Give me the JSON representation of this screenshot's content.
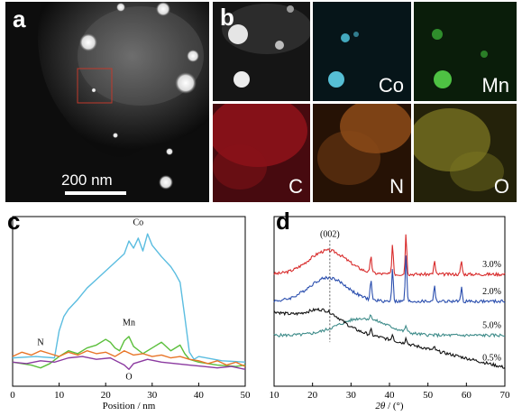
{
  "figure": {
    "panel_a": {
      "letter": "a",
      "scale_bar_label": "200 nm"
    },
    "panel_b": {
      "letter": "b",
      "maps": [
        {
          "key": "haadf",
          "label": "",
          "color": "#ffffff"
        },
        {
          "key": "co",
          "label": "Co",
          "color": "#4fc3dc"
        },
        {
          "key": "mn",
          "label": "Mn",
          "color": "#3fbf3a"
        },
        {
          "key": "c",
          "label": "C",
          "color": "#c3121e"
        },
        {
          "key": "n",
          "label": "N",
          "color": "#d9782a"
        },
        {
          "key": "o",
          "label": "O",
          "color": "#c9c23a"
        }
      ]
    }
  },
  "chart_data": [
    {
      "panel": "c",
      "type": "line",
      "xlabel": "Position / nm",
      "ylabel": "",
      "xlim": [
        0,
        50
      ],
      "xticks": [
        "0",
        "10",
        "20",
        "30",
        "40",
        "50"
      ],
      "series": [
        {
          "name": "Co",
          "color": "#5bbde0",
          "x": [
            0,
            5,
            9,
            10,
            11,
            12,
            14,
            16,
            18,
            20,
            22,
            24,
            25,
            26,
            27,
            28,
            29,
            30,
            32,
            34,
            35,
            36,
            37,
            38,
            39,
            40,
            45,
            50
          ],
          "y": [
            0.11,
            0.12,
            0.11,
            0.3,
            0.4,
            0.45,
            0.52,
            0.6,
            0.66,
            0.72,
            0.78,
            0.84,
            0.93,
            0.88,
            0.95,
            0.86,
            0.98,
            0.9,
            0.82,
            0.75,
            0.7,
            0.64,
            0.4,
            0.15,
            0.1,
            0.12,
            0.09,
            0.08
          ]
        },
        {
          "name": "Mn",
          "color": "#5bbf3c",
          "x": [
            0,
            4,
            6,
            8,
            10,
            12,
            14,
            16,
            18,
            20,
            21,
            22,
            23,
            24,
            25,
            26,
            28,
            30,
            32,
            34,
            36,
            37,
            38,
            40,
            44,
            48,
            50
          ],
          "y": [
            0.08,
            0.06,
            0.04,
            0.07,
            0.12,
            0.16,
            0.14,
            0.18,
            0.2,
            0.24,
            0.22,
            0.18,
            0.16,
            0.23,
            0.26,
            0.19,
            0.14,
            0.18,
            0.22,
            0.16,
            0.2,
            0.14,
            0.1,
            0.08,
            0.06,
            0.05,
            0.06
          ]
        },
        {
          "name": "N",
          "color": "#e87528",
          "x": [
            0,
            2,
            4,
            6,
            8,
            10,
            12,
            14,
            16,
            18,
            20,
            22,
            24,
            26,
            28,
            30,
            32,
            34,
            36,
            38,
            40,
            42,
            44,
            46,
            48,
            50
          ],
          "y": [
            0.12,
            0.15,
            0.13,
            0.16,
            0.14,
            0.12,
            0.15,
            0.13,
            0.16,
            0.14,
            0.15,
            0.12,
            0.16,
            0.13,
            0.14,
            0.12,
            0.13,
            0.11,
            0.12,
            0.1,
            0.09,
            0.07,
            0.09,
            0.06,
            0.08,
            0.05
          ]
        },
        {
          "name": "O",
          "color": "#8b3aa0",
          "x": [
            0,
            3,
            6,
            9,
            12,
            15,
            18,
            21,
            24,
            25,
            26,
            29,
            32,
            35,
            38,
            41,
            44,
            47,
            50
          ],
          "y": [
            0.08,
            0.07,
            0.09,
            0.08,
            0.11,
            0.12,
            0.1,
            0.11,
            0.06,
            0.03,
            0.07,
            0.1,
            0.08,
            0.07,
            0.06,
            0.05,
            0.04,
            0.05,
            0.03
          ]
        }
      ],
      "annotations": [
        {
          "text": "Co",
          "x": 27,
          "y": 1.04
        },
        {
          "text": "Mn",
          "x": 25,
          "y": 0.34
        },
        {
          "text": "N",
          "x": 6,
          "y": 0.2
        },
        {
          "text": "O",
          "x": 25,
          "y": -0.04
        }
      ]
    },
    {
      "panel": "d",
      "type": "line",
      "xlabel_italic": "2θ",
      "xlabel_rest": " / (°)",
      "ylabel": "",
      "xlim": [
        10,
        70
      ],
      "xticks": [
        "10",
        "20",
        "30",
        "40",
        "50",
        "60",
        "70"
      ],
      "peak_label": {
        "text": "(002)",
        "x": 24.5
      },
      "series": [
        {
          "name": "3.0%",
          "color": "#d82a2a",
          "offset": 0.66,
          "hump_center": 24,
          "hump_height": 0.14,
          "hump_width": 7,
          "baseline_slope": 0.0,
          "peaks": [
            [
              35.2,
              0.1
            ],
            [
              40.8,
              0.18
            ],
            [
              44.3,
              0.24
            ],
            [
              51.7,
              0.08
            ],
            [
              58.7,
              0.08
            ]
          ]
        },
        {
          "name": "2.0%",
          "color": "#2a4eae",
          "offset": 0.5,
          "hump_center": 24,
          "hump_height": 0.14,
          "hump_width": 7,
          "baseline_slope": 0.0,
          "peaks": [
            [
              35.2,
              0.12
            ],
            [
              40.8,
              0.2
            ],
            [
              44.3,
              0.28
            ],
            [
              51.7,
              0.1
            ],
            [
              58.7,
              0.08
            ]
          ]
        },
        {
          "name": "5.0%",
          "color": "#3f8c8a",
          "offset": 0.3,
          "hump_center": 33,
          "hump_height": 0.1,
          "hump_width": 9,
          "baseline_slope": 0.0,
          "peaks": [
            [
              35.2,
              0.03
            ],
            [
              44.3,
              0.04
            ]
          ]
        },
        {
          "name": "0.5%",
          "color": "#111111",
          "offset": 0.44,
          "hump_center": 23,
          "hump_height": 0.08,
          "hump_width": 6,
          "baseline_slope": -0.0055,
          "peaks": [
            [
              35.2,
              0.03
            ],
            [
              40.8,
              0.04
            ],
            [
              44.3,
              0.04
            ],
            [
              51.7,
              0.02
            ]
          ]
        }
      ]
    }
  ]
}
